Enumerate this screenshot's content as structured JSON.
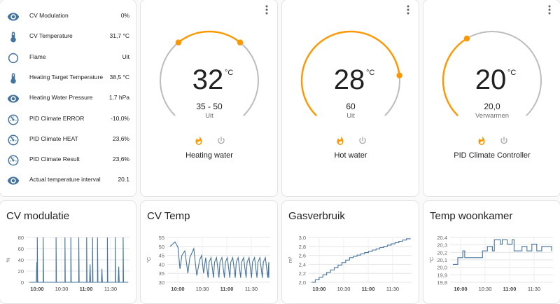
{
  "entities": [
    {
      "icon": "eye-icon",
      "name": "CV Modulation",
      "value": "0%"
    },
    {
      "icon": "thermometer-icon",
      "name": "CV Temperature",
      "value": "31,7 °C"
    },
    {
      "icon": "circle-outline-icon",
      "name": "Flame",
      "value": "Uit"
    },
    {
      "icon": "thermometer-icon",
      "name": "Heating Target Temperature",
      "value": "38,5 °C"
    },
    {
      "icon": "eye-icon",
      "name": "Heating Water Pressure",
      "value": "1,7 hPa"
    },
    {
      "icon": "gauge-icon",
      "name": "PID Climate ERROR",
      "value": "-10,0%"
    },
    {
      "icon": "gauge-icon",
      "name": "PID Climate HEAT",
      "value": "23,6%"
    },
    {
      "icon": "gauge-icon",
      "name": "PID Climate Result",
      "value": "23,6%"
    },
    {
      "icon": "eye-icon",
      "name": "Actual temperature interval",
      "value": "20.1"
    }
  ],
  "thermostats": [
    {
      "name": "Heating water",
      "current": "32",
      "unit": "°C",
      "target": "35 - 50",
      "mode": "Uit",
      "heat_icon": "fire-icon",
      "power_icon": "power-icon"
    },
    {
      "name": "Hot water",
      "current": "28",
      "unit": "°C",
      "target": "60",
      "mode": "Uit",
      "heat_icon": "fire-icon",
      "power_icon": "power-icon"
    },
    {
      "name": "PID Climate Controller",
      "current": "20",
      "unit": "°C",
      "target": "20,0",
      "mode": "Verwarmen",
      "heat_icon": "fire-icon",
      "power_icon": "power-icon"
    }
  ],
  "colors": {
    "accent": "#ff9800",
    "line": "#44739e",
    "icon": "#44739e",
    "track": "#bdbdbd"
  },
  "graphs": [
    {
      "title": "CV modulatie",
      "ylabel": "%",
      "yticks": [
        "80",
        "60",
        "40",
        "20",
        "0"
      ],
      "xticks": [
        "10:00",
        "10:30",
        "11:00",
        "11:30"
      ],
      "bold_ticks": [
        "10:00",
        "11:00"
      ]
    },
    {
      "title": "CV Temp",
      "ylabel": "°C",
      "yticks": [
        "55",
        "50",
        "45",
        "40",
        "35",
        "30"
      ],
      "xticks": [
        "10:00",
        "10:30",
        "11:00",
        "11:30"
      ],
      "bold_ticks": [
        "10:00",
        "11:00"
      ]
    },
    {
      "title": "Gasverbruik",
      "ylabel": "m³",
      "yticks": [
        "3,0",
        "2,8",
        "2,6",
        "2,4",
        "2,2",
        "2,0"
      ],
      "xticks": [
        "10:00",
        "10:30",
        "11:00",
        "11:30"
      ],
      "bold_ticks": [
        "10:00",
        "11:00"
      ]
    },
    {
      "title": "Temp woonkamer",
      "ylabel": "°C",
      "yticks": [
        "20,4",
        "20,3",
        "20,2",
        "20,1",
        "20,0",
        "19,9",
        "19,8"
      ],
      "xticks": [
        "10:00",
        "10:30",
        "11:00",
        "11:30"
      ],
      "bold_ticks": [
        "10:00",
        "11:00"
      ]
    }
  ]
}
